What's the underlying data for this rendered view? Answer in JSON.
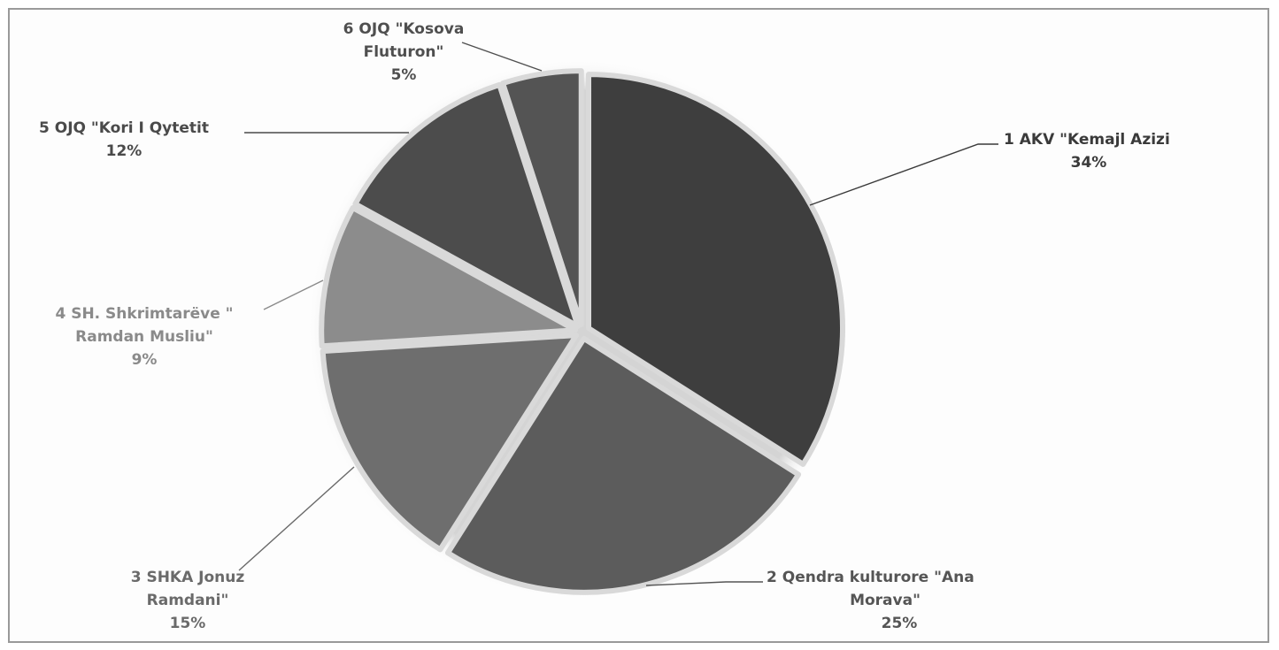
{
  "chart_data": {
    "type": "pie",
    "slices": [
      {
        "label": [
          "1 AKV  \"Kemajl Azizi"
        ],
        "percent_label": "34%",
        "value": 34,
        "color": "#3e3e3e",
        "text_color": "#3a3a3a"
      },
      {
        "label": [
          "2 Qendra kulturore \"Ana",
          "Morava\""
        ],
        "percent_label": "25%",
        "value": 25,
        "color": "#5c5c5c",
        "text_color": "#555555"
      },
      {
        "label": [
          "3 SHKA Jonuz",
          "Ramdani\""
        ],
        "percent_label": "15%",
        "value": 15,
        "color": "#6e6e6e",
        "text_color": "#6a6a6a"
      },
      {
        "label": [
          "4 SH. Shkrimtarëve \"",
          "Ramdan Musliu\""
        ],
        "percent_label": "9%",
        "value": 9,
        "color": "#8c8c8c",
        "text_color": "#8a8a8a"
      },
      {
        "label": [
          "5 OJQ \"Kori I Qytetit"
        ],
        "percent_label": "12%",
        "value": 12,
        "color": "#4c4c4c",
        "text_color": "#4a4a4a"
      },
      {
        "label": [
          "6 OJQ \"Kosova",
          "Fluturon\""
        ],
        "percent_label": "5%",
        "value": 5,
        "color": "#545454",
        "text_color": "#4f4f4f"
      }
    ],
    "start_angle_deg": 0,
    "direction": "clockwise",
    "legend": "none",
    "title": ""
  }
}
